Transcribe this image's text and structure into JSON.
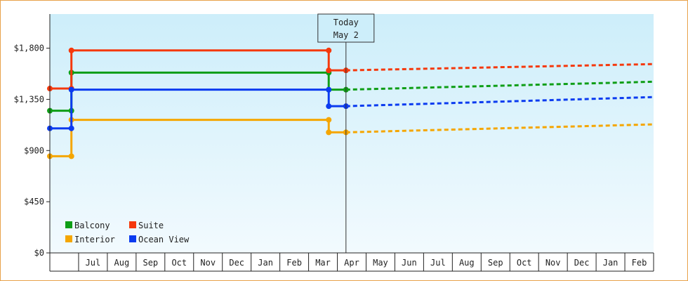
{
  "chart_data": {
    "type": "line",
    "y_tick_labels": [
      "$0",
      "$450",
      "$900",
      "$1,350",
      "$1,800"
    ],
    "y_ticks": [
      0,
      450,
      900,
      1350,
      1800
    ],
    "ylim": [
      0,
      2100
    ],
    "x_tick_labels": [
      "Jul",
      "Aug",
      "Sep",
      "Oct",
      "Nov",
      "Dec",
      "Jan",
      "Feb",
      "Mar",
      "Apr",
      "May",
      "Jun",
      "Jul",
      "Aug",
      "Sep",
      "Oct",
      "Nov",
      "Dec",
      "Jan",
      "Feb"
    ],
    "x_range_months": [
      0,
      21
    ],
    "today_month": 10.3,
    "annotation": {
      "line1": "Today",
      "line2": "May 2"
    },
    "legend": {
      "placement": "bottom-left"
    },
    "grid": false,
    "colors": {
      "background_top": "#cdeefa",
      "background_bottom": "#f2fafe",
      "border": "#e8a24a"
    },
    "series": [
      {
        "name": "Balcony",
        "color": "#0e9e16",
        "actual": [
          [
            0,
            1250
          ],
          [
            0.75,
            1250
          ],
          [
            0.75,
            1585
          ],
          [
            9.7,
            1585
          ],
          [
            9.7,
            1435
          ],
          [
            10.3,
            1435
          ]
        ],
        "forecast": [
          [
            10.3,
            1435
          ],
          [
            21,
            1505
          ]
        ]
      },
      {
        "name": "Interior",
        "color": "#f5a600",
        "actual": [
          [
            0,
            850
          ],
          [
            0.75,
            850
          ],
          [
            0.75,
            1170
          ],
          [
            9.7,
            1170
          ],
          [
            9.7,
            1060
          ],
          [
            10.3,
            1060
          ]
        ],
        "forecast": [
          [
            10.3,
            1060
          ],
          [
            21,
            1130
          ]
        ]
      },
      {
        "name": "Suite",
        "color": "#f5380c",
        "actual": [
          [
            0,
            1445
          ],
          [
            0.75,
            1445
          ],
          [
            0.75,
            1780
          ],
          [
            9.7,
            1780
          ],
          [
            9.7,
            1605
          ],
          [
            10.3,
            1605
          ]
        ],
        "forecast": [
          [
            10.3,
            1605
          ],
          [
            21,
            1660
          ]
        ]
      },
      {
        "name": "Ocean View",
        "color": "#0b3bf0",
        "actual": [
          [
            0,
            1095
          ],
          [
            0.75,
            1095
          ],
          [
            0.75,
            1435
          ],
          [
            9.7,
            1435
          ],
          [
            9.7,
            1290
          ],
          [
            10.3,
            1290
          ]
        ],
        "forecast": [
          [
            10.3,
            1290
          ],
          [
            21,
            1370
          ]
        ]
      }
    ]
  }
}
